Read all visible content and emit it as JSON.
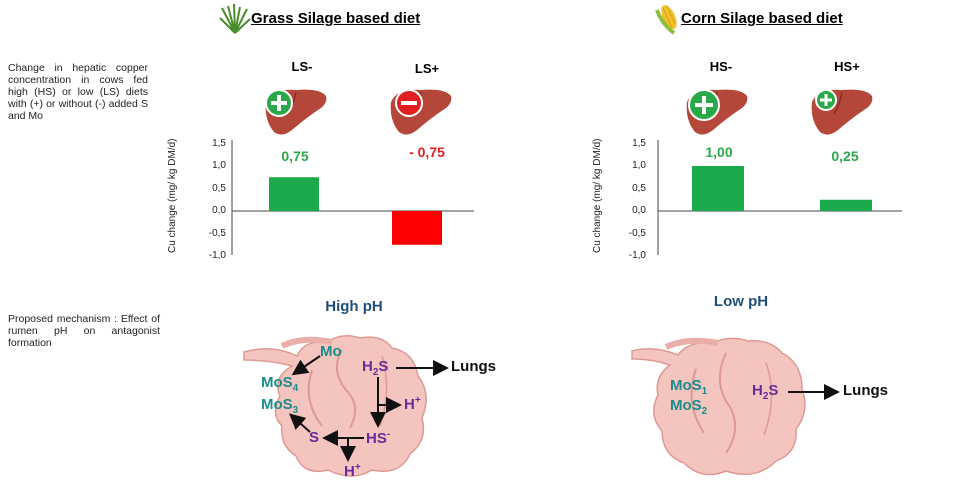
{
  "left_panel": {
    "heading": "Grass Silage based diet",
    "icon": "grass-icon",
    "groups": [
      {
        "label": "LS-",
        "sign": "plus",
        "value_label": "0,75",
        "color": "#1aaa4a"
      },
      {
        "label": "LS+",
        "sign": "minus",
        "value_label": "- 0,75",
        "color": "#e02020"
      }
    ],
    "ph_label": "High pH"
  },
  "right_panel": {
    "heading": "Corn Silage based diet",
    "icon": "corn-icon",
    "groups": [
      {
        "label": "HS-",
        "sign": "plus",
        "value_label": "1,00",
        "color": "#1aaa4a"
      },
      {
        "label": "HS+",
        "sign": "plus",
        "value_label": "0,25",
        "color": "#1aaa4a"
      }
    ],
    "ph_label": "Low pH"
  },
  "side_text": {
    "top": "Change in hepatic copper concentration in cows fed high (HS) or low (LS) diets with (+) or without (-) added S and Mo",
    "bottom": "Proposed mechanism : Effect of rumen pH on antagonist formation"
  },
  "chart_data": [
    {
      "type": "bar",
      "categories": [
        "LS-",
        "LS+"
      ],
      "values": [
        0.75,
        -0.75
      ],
      "ylabel": "Cu change (mg/ kg DM/d)",
      "ylim": [
        -1.0,
        1.5
      ],
      "ticks": [
        "1,5",
        "1,0",
        "0,5",
        "0,0",
        "-0,5",
        "-1,0"
      ]
    },
    {
      "type": "bar",
      "categories": [
        "HS-",
        "HS+"
      ],
      "values": [
        1.0,
        0.25
      ],
      "ylabel": "Cu change (mg/ kg DM/d)",
      "ylim": [
        -1.0,
        1.5
      ],
      "ticks": [
        "1,5",
        "1,0",
        "0,5",
        "0,0",
        "-0,5",
        "-1,0"
      ]
    }
  ],
  "mechanism_high": {
    "mo": "Mo",
    "mos4": "MoS",
    "mos4_sub": "4",
    "mos3": "MoS",
    "mos3_sub": "3",
    "h2s": "H",
    "h2s_sub": "2",
    "h2s_tail": "S",
    "lungs": "Lungs",
    "hplus_right": "H",
    "hplus_sup": "+",
    "hs": "HS",
    "hs_sup": "-",
    "s": "S",
    "hplus_bottom": "H",
    "hplus_bottom_sup": "+"
  },
  "mechanism_low": {
    "mos1": "MoS",
    "mos1_sub": "1",
    "mos2": "MoS",
    "mos2_sub": "2",
    "h2s": "H",
    "h2s_sub": "2",
    "h2s_tail": "S",
    "lungs": "Lungs"
  }
}
